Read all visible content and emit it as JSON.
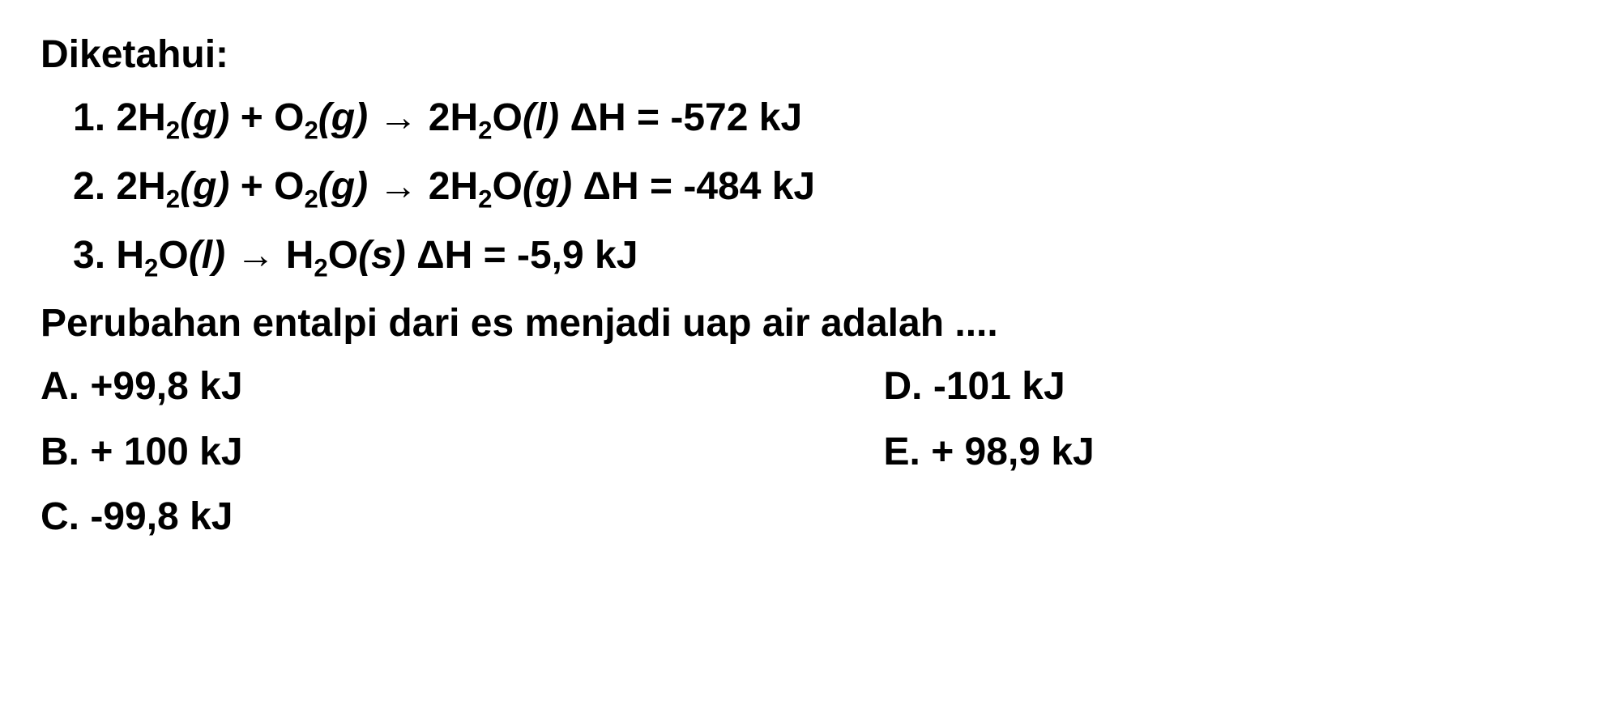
{
  "heading": "Diketahui:",
  "equations": {
    "eq1": {
      "num": "1.",
      "prefix": "2H",
      "sub1": "2",
      "phase1_open": "(",
      "phase1": "g",
      "phase1_close": ")",
      "plus": " + O",
      "sub2": "2",
      "phase2_open": "(",
      "phase2": "g",
      "phase2_close": ")",
      "arrow": " → 2H",
      "sub3": "2",
      "product": "O",
      "phase3_open": "(",
      "phase3": "l",
      "phase3_close": ")",
      "delta": " ΔH = -572 kJ"
    },
    "eq2": {
      "num": "2.",
      "prefix": "2H",
      "sub1": "2",
      "phase1_open": "(",
      "phase1": "g",
      "phase1_close": ")",
      "plus": " + O",
      "sub2": "2",
      "phase2_open": "(",
      "phase2": "g",
      "phase2_close": ")",
      "arrow": " → 2H",
      "sub3": "2",
      "product": "O",
      "phase3_open": "(",
      "phase3": "g",
      "phase3_close": ")",
      "delta": " ΔH = -484 kJ"
    },
    "eq3": {
      "num": "3.",
      "prefix": "H",
      "sub1": "2",
      "product1": "O",
      "phase1_open": "(",
      "phase1": "l",
      "phase1_close": ")",
      "arrow": " → H",
      "sub2": "2",
      "product2": "O",
      "phase2_open": "(",
      "phase2": "s",
      "phase2_close": ")",
      "delta": " ΔH = -5,9 kJ"
    }
  },
  "question": "Perubahan entalpi dari es menjadi uap air adalah ....",
  "options": {
    "a": "A. +99,8 kJ",
    "b": "B. + 100 kJ",
    "c": "C. -99,8 kJ",
    "d": "D. -101 kJ",
    "e": "E. + 98,9 kJ"
  },
  "styling": {
    "background_color": "#ffffff",
    "text_color": "#000000",
    "font_size": 48,
    "font_weight": "bold",
    "font_family": "Arial"
  }
}
